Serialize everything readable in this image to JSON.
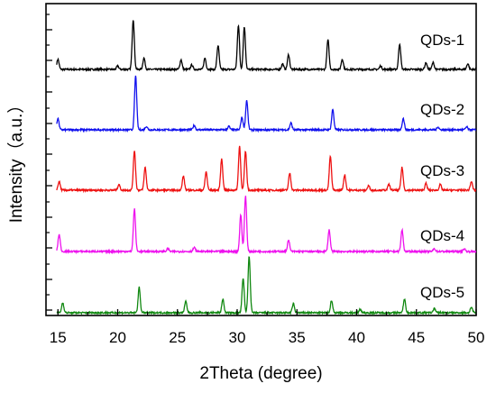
{
  "chart_data": {
    "type": "line",
    "title": "",
    "xlabel": "2Theta (degree)",
    "ylabel": "Intensity（a.u.）",
    "xlim": [
      14,
      50
    ],
    "x_ticks": [
      15,
      20,
      25,
      30,
      35,
      40,
      45,
      50
    ],
    "x_tick_labels": [
      "15",
      "20",
      "25",
      "30",
      "35",
      "40",
      "45",
      "50"
    ],
    "y_ticks_labeled": false,
    "grid": false,
    "legend": "inline labels at right end of each trace",
    "colors": {
      "QDs-1": "#000000",
      "QDs-2": "#1111ee",
      "QDs-3": "#ee1111",
      "QDs-4": "#ee11ee",
      "QDs-5": "#118811"
    },
    "series": [
      {
        "name": "QDs-1",
        "peaks": [
          {
            "x": 15.0,
            "y": 0.18
          },
          {
            "x": 20.0,
            "y": 0.06
          },
          {
            "x": 21.3,
            "y": 0.88
          },
          {
            "x": 22.2,
            "y": 0.2
          },
          {
            "x": 25.3,
            "y": 0.17
          },
          {
            "x": 26.2,
            "y": 0.08
          },
          {
            "x": 27.3,
            "y": 0.2
          },
          {
            "x": 28.4,
            "y": 0.42
          },
          {
            "x": 30.1,
            "y": 0.78
          },
          {
            "x": 30.6,
            "y": 0.75
          },
          {
            "x": 33.8,
            "y": 0.1
          },
          {
            "x": 34.3,
            "y": 0.26
          },
          {
            "x": 37.6,
            "y": 0.52
          },
          {
            "x": 38.8,
            "y": 0.18
          },
          {
            "x": 42.0,
            "y": 0.06
          },
          {
            "x": 43.6,
            "y": 0.45
          },
          {
            "x": 45.8,
            "y": 0.12
          },
          {
            "x": 46.4,
            "y": 0.12
          },
          {
            "x": 49.3,
            "y": 0.1
          }
        ]
      },
      {
        "name": "QDs-2",
        "peaks": [
          {
            "x": 15.0,
            "y": 0.2
          },
          {
            "x": 21.5,
            "y": 0.95
          },
          {
            "x": 22.4,
            "y": 0.06
          },
          {
            "x": 26.4,
            "y": 0.08
          },
          {
            "x": 29.3,
            "y": 0.06
          },
          {
            "x": 30.4,
            "y": 0.22
          },
          {
            "x": 30.8,
            "y": 0.52
          },
          {
            "x": 34.5,
            "y": 0.12
          },
          {
            "x": 38.0,
            "y": 0.36
          },
          {
            "x": 43.9,
            "y": 0.2
          },
          {
            "x": 46.8,
            "y": 0.05
          },
          {
            "x": 49.2,
            "y": 0.05
          }
        ]
      },
      {
        "name": "QDs-3",
        "peaks": [
          {
            "x": 15.1,
            "y": 0.15
          },
          {
            "x": 20.1,
            "y": 0.1
          },
          {
            "x": 21.4,
            "y": 0.7
          },
          {
            "x": 22.3,
            "y": 0.4
          },
          {
            "x": 25.5,
            "y": 0.25
          },
          {
            "x": 27.4,
            "y": 0.32
          },
          {
            "x": 28.7,
            "y": 0.55
          },
          {
            "x": 30.2,
            "y": 0.78
          },
          {
            "x": 30.7,
            "y": 0.68
          },
          {
            "x": 34.4,
            "y": 0.3
          },
          {
            "x": 37.8,
            "y": 0.6
          },
          {
            "x": 39.0,
            "y": 0.27
          },
          {
            "x": 41.0,
            "y": 0.08
          },
          {
            "x": 42.7,
            "y": 0.1
          },
          {
            "x": 43.8,
            "y": 0.4
          },
          {
            "x": 45.8,
            "y": 0.12
          },
          {
            "x": 47.0,
            "y": 0.1
          },
          {
            "x": 49.6,
            "y": 0.15
          }
        ]
      },
      {
        "name": "QDs-4",
        "peaks": [
          {
            "x": 15.1,
            "y": 0.3
          },
          {
            "x": 21.4,
            "y": 0.75
          },
          {
            "x": 24.2,
            "y": 0.05
          },
          {
            "x": 26.4,
            "y": 0.07
          },
          {
            "x": 30.3,
            "y": 0.65
          },
          {
            "x": 30.7,
            "y": 0.98
          },
          {
            "x": 34.3,
            "y": 0.2
          },
          {
            "x": 37.7,
            "y": 0.38
          },
          {
            "x": 43.8,
            "y": 0.38
          },
          {
            "x": 46.5,
            "y": 0.05
          },
          {
            "x": 49.0,
            "y": 0.05
          }
        ]
      },
      {
        "name": "QDs-5",
        "peaks": [
          {
            "x": 15.4,
            "y": 0.18
          },
          {
            "x": 21.8,
            "y": 0.45
          },
          {
            "x": 25.7,
            "y": 0.2
          },
          {
            "x": 28.8,
            "y": 0.24
          },
          {
            "x": 30.5,
            "y": 0.6
          },
          {
            "x": 31.0,
            "y": 1.0
          },
          {
            "x": 34.7,
            "y": 0.16
          },
          {
            "x": 37.9,
            "y": 0.22
          },
          {
            "x": 40.3,
            "y": 0.06
          },
          {
            "x": 44.0,
            "y": 0.24
          },
          {
            "x": 46.5,
            "y": 0.08
          },
          {
            "x": 49.6,
            "y": 0.1
          }
        ]
      }
    ]
  }
}
